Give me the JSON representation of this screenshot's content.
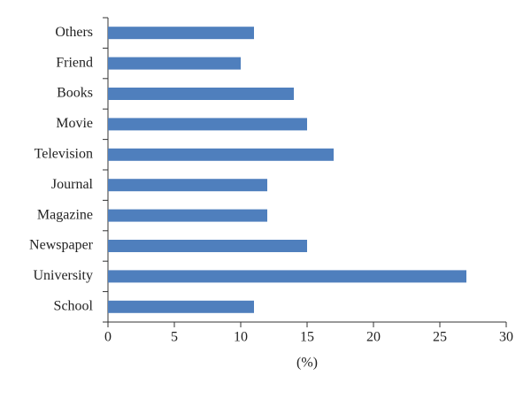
{
  "chart_data": {
    "type": "hbar",
    "x_label": "(%)",
    "categories": [
      "School",
      "University",
      "Newspaper",
      "Magazine",
      "Journal",
      "Television",
      "Movie",
      "Books",
      "Friend",
      "Others"
    ],
    "values": [
      11,
      27,
      15,
      12,
      12,
      17,
      15,
      14,
      10,
      11
    ],
    "color": "#4f7fbd",
    "xlim": [
      0,
      30
    ],
    "xticks": [
      0,
      5,
      10,
      15,
      20,
      25,
      30
    ]
  }
}
